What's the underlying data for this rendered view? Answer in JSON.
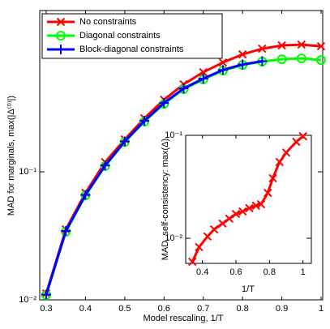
{
  "chart_data": [
    {
      "type": "line",
      "x_label": "Model rescaling, 1/T",
      "y_label": "MAD for marginals, max(|Δ⁽⁰⁾|)",
      "x": [
        0.3,
        0.35,
        0.4,
        0.45,
        0.5,
        0.55,
        0.6,
        0.65,
        0.7,
        0.75,
        0.8,
        0.85,
        0.9,
        0.95,
        1.0
      ],
      "series": [
        {
          "name": "No constraints",
          "color": "#ff0000",
          "marker": "x",
          "values": [
            0.0112,
            0.0355,
            0.0685,
            0.119,
            0.179,
            0.262,
            0.366,
            0.483,
            0.6,
            0.715,
            0.827,
            0.916,
            0.971,
            0.986,
            0.957
          ]
        },
        {
          "name": "Diagonal constraints",
          "color": "#00ff00",
          "marker": "o",
          "values": [
            0.0109,
            0.034,
            0.0655,
            0.111,
            0.171,
            0.247,
            0.34,
            0.442,
            0.527,
            0.618,
            0.684,
            0.726,
            0.758,
            0.769,
            0.747
          ]
        },
        {
          "name": "Block-diagonal constraints",
          "color": "#0000ff",
          "marker": "+",
          "values": [
            0.011,
            0.0345,
            0.066,
            0.112,
            0.173,
            0.25,
            0.345,
            0.448,
            0.535,
            0.625,
            0.69,
            0.732,
            null,
            null,
            null
          ]
        }
      ],
      "xlim": [
        0.3,
        1.0
      ],
      "xticks": [
        0.3,
        0.4,
        0.5,
        0.6,
        0.7,
        0.8,
        0.9,
        1
      ],
      "ylim": [
        0.01,
        1.82
      ],
      "yticks": [
        {
          "value": 0.01,
          "label": "10⁻²"
        },
        {
          "value": 0.1,
          "label": "10⁻¹"
        }
      ],
      "y_scale": "log",
      "grid": false,
      "legend": "upper-left"
    },
    {
      "type": "line",
      "x_label": "1/T",
      "y_label": "MAD, self-consistency: max(Δ)",
      "x": [
        0.34,
        0.38,
        0.43,
        0.47,
        0.52,
        0.56,
        0.6,
        0.64,
        0.68,
        0.72,
        0.75,
        0.79,
        0.82,
        0.86,
        0.9,
        0.96,
        1.0
      ],
      "series": [
        {
          "color": "#ff0000",
          "marker": "x",
          "values": [
            0.0059,
            0.0082,
            0.0104,
            0.0122,
            0.0139,
            0.0155,
            0.0172,
            0.0182,
            0.0196,
            0.0207,
            0.0214,
            0.0276,
            0.0383,
            0.055,
            0.068,
            0.0865,
            0.098
          ]
        }
      ],
      "xlim": [
        0.3,
        1.05
      ],
      "xticks": [
        0.4,
        0.6,
        0.8,
        1
      ],
      "ylim": [
        0.0057,
        0.1
      ],
      "yticks": [
        {
          "value": 0.01,
          "label": "10⁻²"
        },
        {
          "value": 0.1,
          "label": "10⁻¹"
        }
      ],
      "y_scale": "log",
      "grid": false
    }
  ]
}
